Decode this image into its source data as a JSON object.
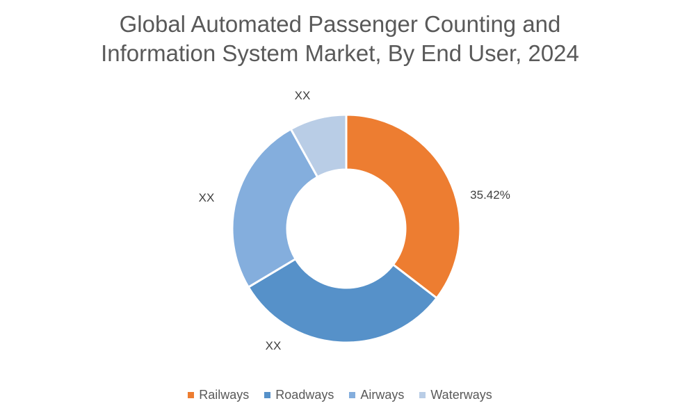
{
  "chart_data": {
    "type": "pie",
    "variant": "donut",
    "title_line1": "Global Automated Passenger Counting and",
    "title_line2": "Information System Market, By End User, 2024",
    "categories": [
      "Railways",
      "Roadways",
      "Airways",
      "Waterways"
    ],
    "values": [
      35.42,
      31.0,
      25.5,
      8.08
    ],
    "data_labels": [
      "35.42%",
      "XX",
      "XX",
      "XX"
    ],
    "colors": [
      "#ED7D31",
      "#5691C9",
      "#84AEDD",
      "#B9CDE6"
    ],
    "legend_position": "bottom"
  }
}
